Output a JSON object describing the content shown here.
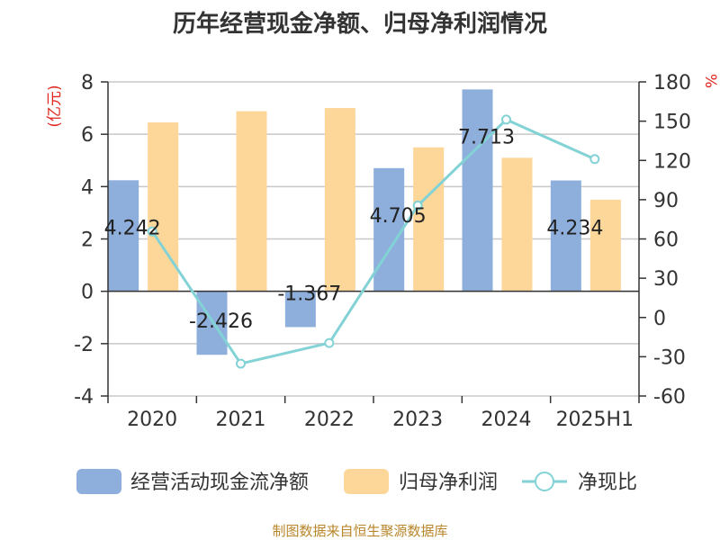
{
  "chart_data": {
    "type": "bar",
    "title": "历年经营现金净额、归母净利润情况",
    "categories": [
      "2020",
      "2021",
      "2022",
      "2023",
      "2024",
      "2025H1"
    ],
    "y_left": {
      "unit": "(亿元)",
      "ylim": [
        -4,
        8
      ],
      "ticks": [
        -4,
        -2,
        0,
        2,
        4,
        6,
        8
      ]
    },
    "y_right": {
      "unit": "%",
      "ylim": [
        -60,
        180
      ],
      "ticks": [
        -60,
        -30,
        0,
        30,
        60,
        90,
        120,
        150,
        180
      ]
    },
    "series": [
      {
        "name": "经营活动现金流净额",
        "kind": "bar",
        "axis": "left",
        "color": "#8eaedc",
        "values": [
          4.242,
          -2.426,
          -1.367,
          4.705,
          7.713,
          4.234
        ],
        "labels": [
          "4.242",
          "-2.426",
          "-1.367",
          "4.705",
          "7.713",
          "4.234"
        ]
      },
      {
        "name": "归母净利润",
        "kind": "bar",
        "axis": "left",
        "color": "#fdd69a",
        "values": [
          6.45,
          6.88,
          7.0,
          5.5,
          5.1,
          3.5
        ]
      },
      {
        "name": "净现比",
        "kind": "line",
        "axis": "right",
        "color": "#82d2d6",
        "values": [
          65.8,
          -35.3,
          -19.5,
          85.5,
          151.2,
          121.0
        ]
      }
    ],
    "grid": true,
    "legend": "bottom"
  },
  "footer": {
    "source": "制图数据来自恒生聚源数据库"
  }
}
